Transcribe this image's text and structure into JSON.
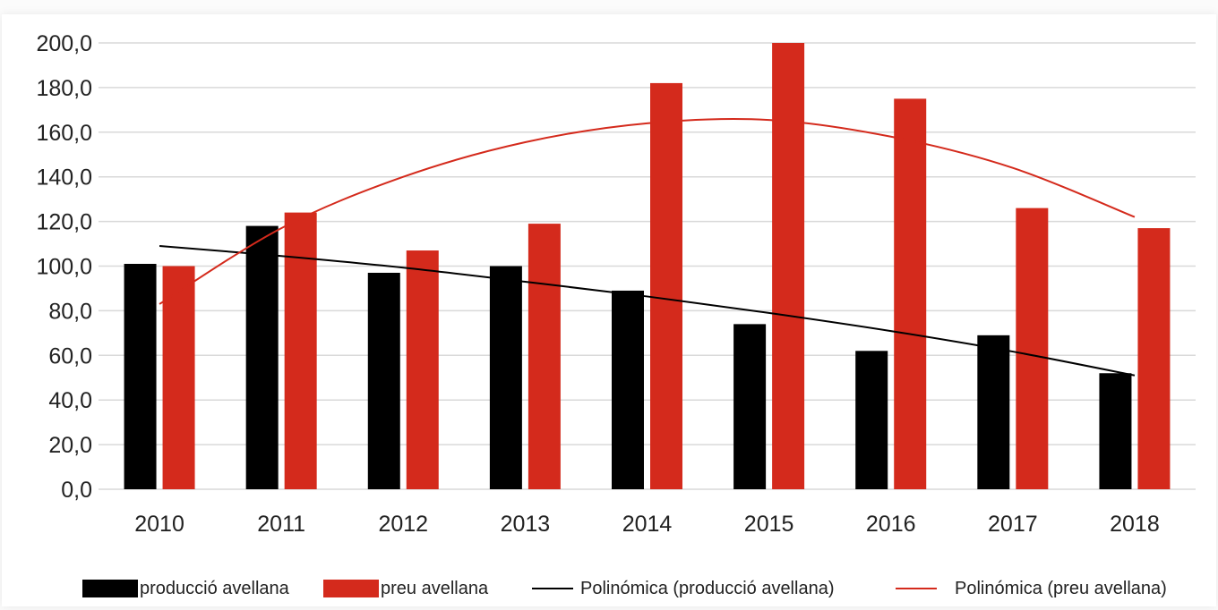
{
  "chart_data": {
    "type": "bar",
    "categories": [
      "2010",
      "2011",
      "2012",
      "2013",
      "2014",
      "2015",
      "2016",
      "2017",
      "2018"
    ],
    "series": [
      {
        "name": "producció avellana",
        "color": "#000000",
        "values": [
          101.0,
          118.0,
          97.0,
          100.0,
          89.0,
          74.0,
          62.0,
          69.0,
          52.0
        ]
      },
      {
        "name": "preu avellana",
        "color": "#d42a1c",
        "values": [
          100.0,
          124.0,
          107.0,
          119.0,
          182.0,
          200.0,
          175.0,
          126.0,
          117.0
        ]
      }
    ],
    "trendlines": [
      {
        "name": "Polinómica (producció avellana)",
        "color": "#000000",
        "series": "producció avellana",
        "type": "polynomial",
        "values": [
          109.0,
          104.5,
          99.3,
          93.0,
          86.4,
          79.0,
          70.9,
          61.7,
          51.0
        ]
      },
      {
        "name": "Polinómica (preu avellana)",
        "color": "#d42a1c",
        "series": "preu avellana",
        "type": "polynomial",
        "values": [
          83.0,
          117.0,
          140.0,
          155.5,
          164.0,
          165.5,
          158.0,
          144.0,
          122.0
        ]
      }
    ],
    "ylim": [
      0,
      200
    ],
    "yticks": [
      "0,0",
      "20,0",
      "40,0",
      "60,0",
      "80,0",
      "100,0",
      "120,0",
      "140,0",
      "160,0",
      "180,0",
      "200,0"
    ],
    "grid": true,
    "legend_position": "bottom",
    "title": "",
    "xlabel": "",
    "ylabel": ""
  }
}
